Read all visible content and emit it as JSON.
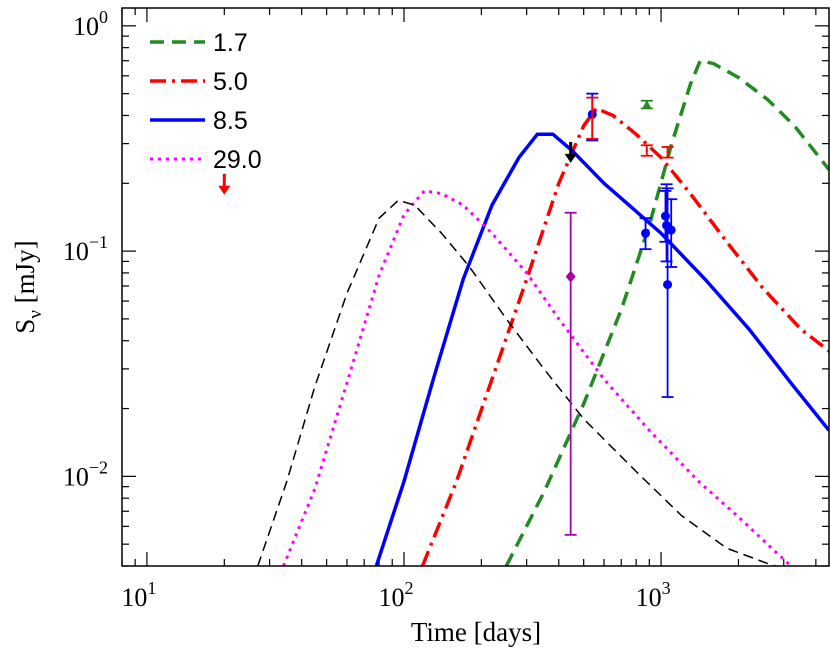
{
  "chart_data": {
    "type": "line",
    "xlabel": "Time [days]",
    "ylabel": {
      "main": "S",
      "sub": "ν",
      "unit": " [mJy]"
    },
    "xscale": "log",
    "yscale": "log",
    "xlim": [
      8,
      4500
    ],
    "ylim": [
      0.004,
      1.2
    ],
    "x_ticks": [
      {
        "value": 10,
        "base": "10",
        "exp": "1"
      },
      {
        "value": 100,
        "base": "10",
        "exp": "2"
      },
      {
        "value": 1000,
        "base": "10",
        "exp": "3"
      }
    ],
    "y_ticks": [
      {
        "value": 0.01,
        "base": "10",
        "exp": "−2"
      },
      {
        "value": 0.1,
        "base": "10",
        "exp": "−1"
      },
      {
        "value": 1,
        "base": "10",
        "exp": "0"
      }
    ],
    "legend_position": "top-left",
    "series": [
      {
        "name": "1.7",
        "color": "#228B22",
        "dash": "14,8",
        "width": 3.5,
        "x": [
          250,
          350,
          500,
          700,
          900,
          1100,
          1300,
          1420,
          1600,
          2000,
          2600,
          3300,
          4500
        ],
        "y": [
          0.004,
          0.0085,
          0.021,
          0.055,
          0.13,
          0.3,
          0.55,
          0.7,
          0.68,
          0.59,
          0.47,
          0.36,
          0.23
        ]
      },
      {
        "name": "5.0",
        "color": "#FF0000",
        "dash": "16,6,3,6",
        "width": 3.5,
        "x": [
          118,
          160,
          220,
          300,
          400,
          500,
          560,
          650,
          800,
          1000,
          1300,
          1800,
          2500,
          3500,
          4500
        ],
        "y": [
          0.004,
          0.0095,
          0.027,
          0.075,
          0.2,
          0.36,
          0.43,
          0.4,
          0.33,
          0.26,
          0.18,
          0.11,
          0.068,
          0.045,
          0.036
        ]
      },
      {
        "name": "8.5",
        "color": "#0000FF",
        "dash": "",
        "width": 3.5,
        "x": [
          78,
          100,
          130,
          170,
          220,
          280,
          330,
          380,
          450,
          600,
          800,
          1000,
          1500,
          2200,
          3200,
          4500
        ],
        "y": [
          0.004,
          0.0095,
          0.027,
          0.075,
          0.16,
          0.26,
          0.33,
          0.33,
          0.28,
          0.2,
          0.15,
          0.12,
          0.074,
          0.045,
          0.026,
          0.016
        ]
      },
      {
        "name": "29.0",
        "color": "#FF00FF",
        "dash": "3,5",
        "width": 3,
        "x": [
          34,
          45,
          60,
          80,
          100,
          120,
          140,
          170,
          220,
          300,
          400,
          600,
          900,
          1400,
          2000,
          2800,
          3200
        ],
        "y": [
          0.004,
          0.0088,
          0.026,
          0.078,
          0.145,
          0.185,
          0.18,
          0.16,
          0.12,
          0.08,
          0.05,
          0.027,
          0.016,
          0.0095,
          0.0066,
          0.0046,
          0.004
        ]
      },
      {
        "name": "",
        "color": "#000000",
        "dash": "10,6",
        "width": 1.5,
        "x": [
          27,
          35,
          45,
          60,
          80,
          95,
          110,
          140,
          180,
          250,
          350,
          500,
          800,
          1200,
          1800,
          2600,
          3000
        ],
        "y": [
          0.004,
          0.0095,
          0.025,
          0.065,
          0.14,
          0.168,
          0.16,
          0.12,
          0.085,
          0.05,
          0.03,
          0.018,
          0.0105,
          0.0067,
          0.0048,
          0.0041,
          0.0039
        ]
      }
    ],
    "points": [
      {
        "x": 540,
        "y": 0.405,
        "lo": 0.31,
        "hi": 0.5,
        "color": "#0000FF",
        "marker": "circle"
      },
      {
        "x": 870,
        "y": 0.12,
        "lo": 0.102,
        "hi": 0.14,
        "color": "#0000FF",
        "marker": "circle"
      },
      {
        "x": 1040,
        "y": 0.143,
        "lo": 0.11,
        "hi": 0.185,
        "color": "#0000FF",
        "marker": "circle"
      },
      {
        "x": 1050,
        "y": 0.13,
        "lo": 0.09,
        "hi": 0.198,
        "color": "#0000FF",
        "marker": "circle"
      },
      {
        "x": 1060,
        "y": 0.071,
        "lo": 0.0225,
        "hi": 0.19,
        "color": "#0000FF",
        "marker": "circle"
      },
      {
        "x": 1095,
        "y": 0.124,
        "lo": 0.085,
        "hi": 0.17,
        "color": "#0000FF",
        "marker": "circle"
      },
      {
        "x": 540,
        "y": 0.42,
        "lo": 0.315,
        "hi": 0.48,
        "color": "#FF0000",
        "marker": "none"
      },
      {
        "x": 880,
        "y": 0.28,
        "lo": 0.265,
        "hi": 0.295,
        "color": "#FF0000",
        "marker": "none"
      },
      {
        "x": 1060,
        "y": 0.275,
        "lo": 0.26,
        "hi": 0.29,
        "color": "#FF0000",
        "marker": "none"
      },
      {
        "x": 880,
        "y": 0.445,
        "lo": 0.43,
        "hi": 0.465,
        "color": "#228B22",
        "marker": "star"
      },
      {
        "x": 445,
        "y": 0.077,
        "lo": 0.0055,
        "hi": 0.148,
        "color": "#AA00AA",
        "marker": "diamond"
      }
    ],
    "upper_limits": [
      {
        "x": 445,
        "y": 0.27,
        "color": "#000000"
      },
      {
        "x": 20,
        "y": 0.195,
        "color": "#FF0000"
      }
    ]
  }
}
